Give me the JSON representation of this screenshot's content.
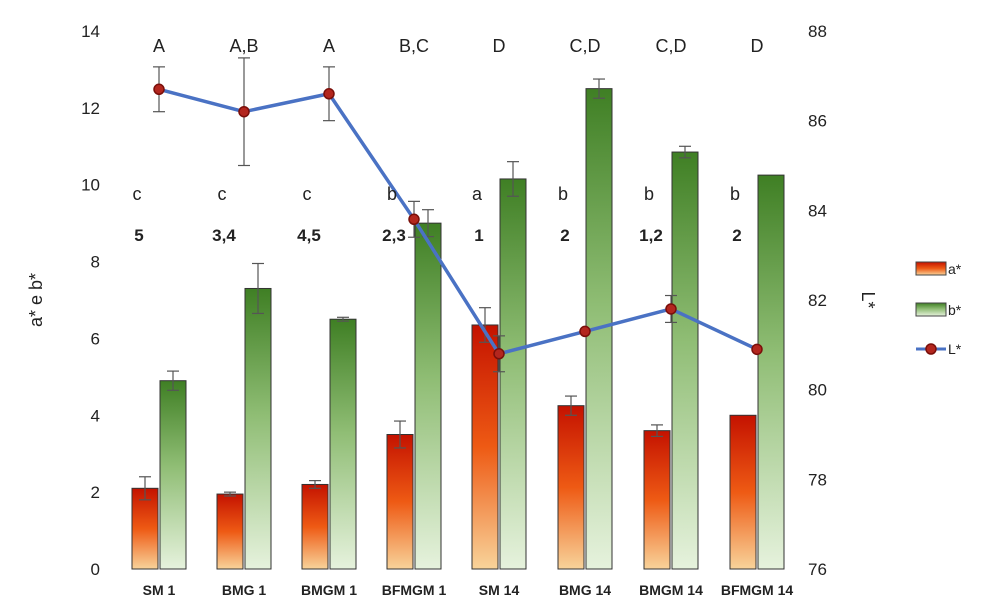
{
  "chart_data": {
    "type": "bar",
    "categories": [
      "SM 1",
      "BMG 1",
      "BMGM 1",
      "BFMGM 1",
      "SM 14",
      "BMG 14",
      "BMGM 14",
      "BFMGM 14"
    ],
    "series": [
      {
        "name": "a*",
        "axis": "left",
        "kind": "bar",
        "values": [
          2.1,
          1.95,
          2.2,
          3.5,
          6.35,
          4.25,
          3.6,
          4.0
        ],
        "errors": [
          0.3,
          0.05,
          0.1,
          0.35,
          0.45,
          0.25,
          0.15,
          0
        ],
        "colors": {
          "top": "#c41200",
          "mid": "#ee5a14",
          "bottom": "#f8d39a"
        }
      },
      {
        "name": "b*",
        "axis": "left",
        "kind": "bar",
        "values": [
          4.9,
          7.3,
          6.5,
          9.0,
          10.15,
          12.5,
          10.85,
          10.25
        ],
        "errors": [
          0.25,
          0.65,
          0.05,
          0.35,
          0.45,
          0.25,
          0.15,
          0
        ],
        "colors": {
          "top": "#3f7f24",
          "mid": "#8fbd74",
          "bottom": "#e6f2dd"
        }
      },
      {
        "name": "L*",
        "axis": "right",
        "kind": "line",
        "values": [
          86.7,
          86.2,
          86.6,
          83.8,
          80.8,
          81.3,
          81.8,
          80.9
        ],
        "errors": [
          0.5,
          1.2,
          0.6,
          0.4,
          0.4,
          0,
          0.3,
          0
        ],
        "colors": {
          "line": "#4a72c4",
          "marker": "#b3261e",
          "marker_edge": "#7a0f0a"
        }
      }
    ],
    "annotations": {
      "upper_letters": [
        "A",
        "A,B",
        "A",
        "B,C",
        "D",
        "C,D",
        "C,D",
        "D"
      ],
      "lower_letters": [
        "c",
        "c",
        "c",
        "b",
        "a",
        "b",
        "b",
        "b"
      ],
      "numbers": [
        "5",
        "3,4",
        "4,5",
        "2,3",
        "1",
        "2",
        "1,2",
        "2"
      ]
    },
    "ylabel": "a* e b*",
    "y2label": "L*",
    "ylim": [
      0,
      14
    ],
    "y2lim": [
      76,
      88
    ],
    "yticks": [
      "0",
      "2",
      "4",
      "6",
      "8",
      "10",
      "12",
      "14"
    ],
    "y2ticks": [
      "76",
      "78",
      "80",
      "82",
      "84",
      "86",
      "88"
    ],
    "legend": {
      "placement": "right",
      "entries": [
        "a*",
        "b*",
        "L*"
      ]
    },
    "grid": false
  }
}
